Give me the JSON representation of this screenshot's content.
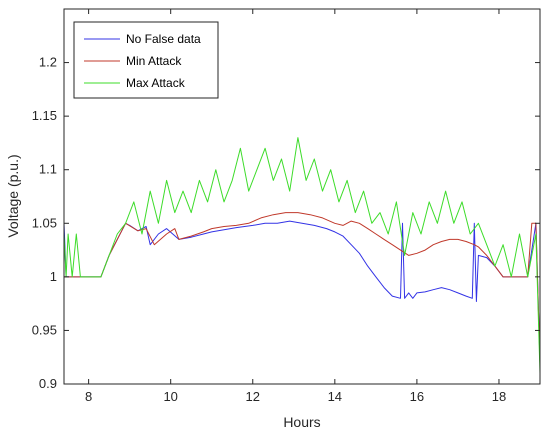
{
  "chart_data": {
    "type": "line",
    "title": "",
    "xlabel": "Hours",
    "ylabel": "Voltage (p.u.)",
    "xlim": [
      7.4,
      19
    ],
    "ylim": [
      0.9,
      1.25
    ],
    "xticks": [
      8,
      10,
      12,
      14,
      16,
      18
    ],
    "yticks": [
      0.9,
      0.95,
      1,
      1.05,
      1.1,
      1.15,
      1.2
    ],
    "grid": false,
    "legend": "top-left",
    "series": [
      {
        "name": "No False data",
        "color": "#3333e6",
        "x": [
          7.4,
          7.45,
          7.5,
          7.6,
          8.3,
          8.5,
          8.7,
          8.9,
          9.0,
          9.2,
          9.4,
          9.5,
          9.7,
          9.9,
          10.2,
          10.5,
          10.8,
          11.0,
          11.3,
          11.6,
          11.8,
          12.0,
          12.3,
          12.6,
          12.9,
          13.2,
          13.5,
          13.8,
          14.0,
          14.2,
          14.4,
          14.6,
          14.8,
          15.0,
          15.2,
          15.4,
          15.6,
          15.65,
          15.7,
          15.8,
          15.9,
          16.0,
          16.2,
          16.4,
          16.6,
          16.8,
          17.0,
          17.2,
          17.35,
          17.4,
          17.45,
          17.5,
          17.7,
          17.9,
          18.1,
          18.3,
          18.5,
          18.7,
          18.9,
          19.0
        ],
        "y": [
          1.05,
          1.0,
          1.0,
          1.0,
          1.0,
          1.02,
          1.035,
          1.05,
          1.048,
          1.043,
          1.047,
          1.03,
          1.04,
          1.045,
          1.035,
          1.037,
          1.04,
          1.042,
          1.044,
          1.046,
          1.047,
          1.048,
          1.05,
          1.05,
          1.052,
          1.05,
          1.048,
          1.045,
          1.042,
          1.038,
          1.03,
          1.022,
          1.01,
          1.0,
          0.99,
          0.982,
          0.98,
          1.05,
          0.98,
          0.985,
          0.98,
          0.985,
          0.986,
          0.988,
          0.99,
          0.988,
          0.985,
          0.982,
          0.98,
          1.05,
          0.977,
          1.02,
          1.018,
          1.01,
          1.0,
          1.0,
          1.0,
          1.0,
          1.05,
          0.92
        ]
      },
      {
        "name": "Min Attack",
        "color": "#c0392b",
        "x": [
          7.4,
          7.5,
          8.3,
          8.5,
          8.7,
          8.9,
          9.2,
          9.4,
          9.6,
          9.9,
          10.1,
          10.2,
          10.5,
          10.8,
          11.0,
          11.3,
          11.6,
          11.9,
          12.2,
          12.5,
          12.8,
          13.1,
          13.4,
          13.7,
          14.0,
          14.2,
          14.4,
          14.6,
          14.8,
          15.0,
          15.2,
          15.4,
          15.6,
          15.8,
          16.0,
          16.2,
          16.4,
          16.6,
          16.8,
          17.0,
          17.2,
          17.4,
          17.5,
          17.7,
          17.9,
          18.1,
          18.3,
          18.5,
          18.7,
          18.8,
          18.9,
          19.0
        ],
        "y": [
          1.0,
          1.0,
          1.0,
          1.02,
          1.035,
          1.05,
          1.043,
          1.045,
          1.03,
          1.04,
          1.045,
          1.035,
          1.038,
          1.042,
          1.045,
          1.047,
          1.048,
          1.05,
          1.055,
          1.058,
          1.06,
          1.06,
          1.058,
          1.055,
          1.05,
          1.048,
          1.052,
          1.05,
          1.045,
          1.04,
          1.035,
          1.03,
          1.025,
          1.02,
          1.022,
          1.025,
          1.03,
          1.033,
          1.035,
          1.035,
          1.033,
          1.03,
          1.028,
          1.02,
          1.01,
          1.0,
          1.0,
          1.0,
          1.0,
          1.05,
          1.05,
          0.92
        ]
      },
      {
        "name": "Max Attack",
        "color": "#3ddc2a",
        "x": [
          7.4,
          7.45,
          7.5,
          7.6,
          7.7,
          7.8,
          8.3,
          8.5,
          8.7,
          8.9,
          9.1,
          9.3,
          9.5,
          9.7,
          9.9,
          10.1,
          10.3,
          10.5,
          10.7,
          10.9,
          11.1,
          11.3,
          11.5,
          11.7,
          11.9,
          12.1,
          12.3,
          12.5,
          12.7,
          12.9,
          13.1,
          13.3,
          13.5,
          13.7,
          13.9,
          14.1,
          14.3,
          14.5,
          14.7,
          14.9,
          15.1,
          15.3,
          15.5,
          15.7,
          15.9,
          16.1,
          16.3,
          16.5,
          16.7,
          16.9,
          17.1,
          17.3,
          17.5,
          17.7,
          17.9,
          18.1,
          18.3,
          18.5,
          18.7,
          18.9,
          19.0
        ],
        "y": [
          1.04,
          1.0,
          1.04,
          1.0,
          1.04,
          1.0,
          1.0,
          1.02,
          1.04,
          1.05,
          1.07,
          1.04,
          1.08,
          1.05,
          1.09,
          1.06,
          1.08,
          1.06,
          1.09,
          1.07,
          1.1,
          1.07,
          1.09,
          1.12,
          1.08,
          1.1,
          1.12,
          1.09,
          1.11,
          1.08,
          1.13,
          1.09,
          1.11,
          1.08,
          1.1,
          1.07,
          1.09,
          1.06,
          1.08,
          1.05,
          1.06,
          1.04,
          1.07,
          1.02,
          1.06,
          1.04,
          1.07,
          1.05,
          1.08,
          1.05,
          1.07,
          1.04,
          1.05,
          1.03,
          1.01,
          1.03,
          1.0,
          1.04,
          1.0,
          1.04,
          0.91
        ]
      }
    ]
  }
}
